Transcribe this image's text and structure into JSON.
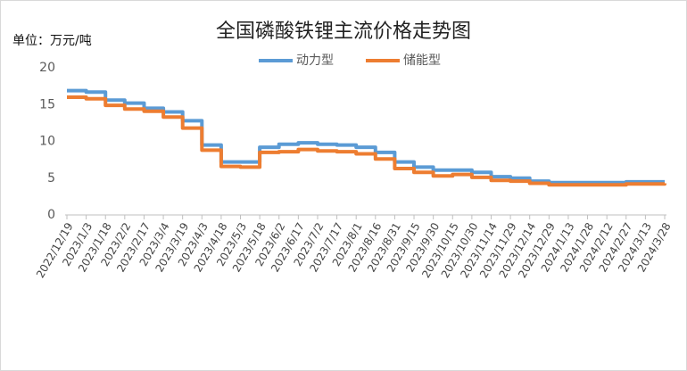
{
  "chart_data": {
    "type": "line",
    "title": "全国磷酸铁锂主流价格走势图",
    "y_label": "单位：万元/吨",
    "categories": [
      "2022/12/19",
      "2023/1/3",
      "2023/1/18",
      "2023/2/2",
      "2023/2/17",
      "2023/3/4",
      "2023/3/19",
      "2023/4/3",
      "2023/4/18",
      "2023/5/3",
      "2023/5/18",
      "2023/6/2",
      "2023/6/17",
      "2023/7/2",
      "2023/7/17",
      "2023/8/1",
      "2023/8/16",
      "2023/8/31",
      "2023/9/15",
      "2023/9/30",
      "2023/10/15",
      "2023/10/30",
      "2023/11/14",
      "2023/11/29",
      "2023/12/14",
      "2023/12/29",
      "2024/1/13",
      "2024/1/28",
      "2024/2/12",
      "2024/2/27",
      "2024/3/13",
      "2024/3/28"
    ],
    "series": [
      {
        "name": "动力型",
        "color": "#5b9bd5",
        "values": [
          16.9,
          16.7,
          15.6,
          15.2,
          14.5,
          14.0,
          12.8,
          9.5,
          7.2,
          7.2,
          9.2,
          9.6,
          9.8,
          9.6,
          9.5,
          9.2,
          8.5,
          7.2,
          6.5,
          6.1,
          6.1,
          5.8,
          5.2,
          5.0,
          4.6,
          4.4,
          4.4,
          4.4,
          4.4,
          4.5,
          4.5,
          4.5
        ]
      },
      {
        "name": "储能型",
        "color": "#ed7d31",
        "values": [
          16.0,
          15.8,
          14.9,
          14.4,
          14.1,
          13.3,
          11.8,
          8.8,
          6.6,
          6.5,
          8.5,
          8.6,
          8.9,
          8.7,
          8.6,
          8.3,
          7.6,
          6.3,
          5.8,
          5.3,
          5.5,
          5.1,
          4.7,
          4.6,
          4.3,
          4.1,
          4.1,
          4.1,
          4.1,
          4.2,
          4.2,
          4.3
        ]
      }
    ],
    "ylim": [
      0,
      20
    ],
    "yticks": [
      0,
      5,
      10,
      15,
      20
    ],
    "grid": false,
    "legend": "top"
  }
}
